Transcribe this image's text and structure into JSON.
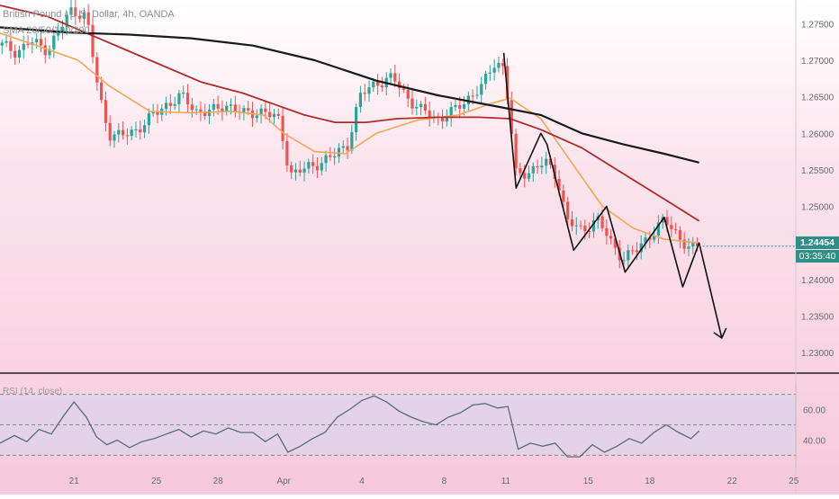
{
  "header": {
    "title": "British Pound / U.S. Dollar, 4h, OANDA",
    "indicator": "SMA 20/50/100/200"
  },
  "price_label": {
    "last": "1.24454",
    "countdown": "03:35:40"
  },
  "rsi": {
    "label": "RSI (14, close)",
    "ticks": [
      60.0,
      40.0
    ],
    "ticks_text": [
      "60.00",
      "40.00"
    ],
    "upper_band": 70,
    "lower_band": 30,
    "mid": 50
  },
  "colors": {
    "up": "#26a69a",
    "down": "#ef5350",
    "sma_fast": "#f5a65b",
    "sma_mid": "#b22b2b",
    "sma_slow": "#1a1a1a",
    "drawing": "#111111",
    "rsi_line": "#5b6b73",
    "rsi_band": "#ddd3ec",
    "price_tag": "#2f8f87",
    "axis_text": "#6b6b6b"
  },
  "chart_data": {
    "type": "line",
    "title": "British Pound / U.S. Dollar, 4h, OANDA",
    "xlabel": "",
    "ylabel": "",
    "x_tick_labels": [
      "21",
      "25",
      "28",
      "Apr",
      "4",
      "8",
      "11",
      "15",
      "18",
      "22",
      "25"
    ],
    "x_tick_positions": [
      0.3,
      4.3,
      7.3,
      10.5,
      14.3,
      18.3,
      21.3,
      25.3,
      28.3,
      32.3,
      35.3
    ],
    "y_ticks": [
      1.275,
      1.27,
      1.265,
      1.26,
      1.255,
      1.25,
      1.245,
      1.24,
      1.235,
      1.23
    ],
    "y_tick_labels": [
      "1.27500",
      "1.27000",
      "1.26500",
      "1.26000",
      "1.25500",
      "1.25000",
      "1.24500",
      "1.24000",
      "1.23500",
      "1.23000"
    ],
    "ylim": [
      1.2278,
      1.2775
    ],
    "xlim": [
      -3.3,
      35.4
    ],
    "grid": false,
    "last_price": 1.24454,
    "price_path": [
      [
        -3.2,
        1.272
      ],
      [
        -2.5,
        1.2712
      ],
      [
        -1.8,
        1.2725
      ],
      [
        -1.0,
        1.2715
      ],
      [
        -0.4,
        1.274
      ],
      [
        0.2,
        1.277
      ],
      [
        0.9,
        1.276
      ],
      [
        1.5,
        1.2655
      ],
      [
        2.0,
        1.26
      ],
      [
        2.6,
        1.2595
      ],
      [
        3.3,
        1.2605
      ],
      [
        4.0,
        1.262
      ],
      [
        4.8,
        1.264
      ],
      [
        5.5,
        1.265
      ],
      [
        6.3,
        1.263
      ],
      [
        7.1,
        1.263
      ],
      [
        7.8,
        1.264
      ],
      [
        8.6,
        1.2625
      ],
      [
        9.5,
        1.2632
      ],
      [
        10.3,
        1.2615
      ],
      [
        10.8,
        1.2545
      ],
      [
        11.5,
        1.255
      ],
      [
        12.2,
        1.256
      ],
      [
        13.0,
        1.257
      ],
      [
        13.6,
        1.2585
      ],
      [
        14.2,
        1.265
      ],
      [
        15.0,
        1.267
      ],
      [
        15.8,
        1.2675
      ],
      [
        16.5,
        1.265
      ],
      [
        17.2,
        1.263
      ],
      [
        18.0,
        1.262
      ],
      [
        18.8,
        1.263
      ],
      [
        19.5,
        1.265
      ],
      [
        20.2,
        1.2665
      ],
      [
        20.8,
        1.27
      ],
      [
        21.2,
        1.269
      ],
      [
        21.5,
        1.262
      ],
      [
        21.8,
        1.254
      ],
      [
        22.5,
        1.255
      ],
      [
        23.2,
        1.256
      ],
      [
        23.8,
        1.254
      ],
      [
        24.3,
        1.248
      ],
      [
        25.0,
        1.2465
      ],
      [
        25.7,
        1.2485
      ],
      [
        26.4,
        1.245
      ],
      [
        27.0,
        1.243
      ],
      [
        27.7,
        1.244
      ],
      [
        28.4,
        1.2465
      ],
      [
        29.0,
        1.248
      ],
      [
        29.7,
        1.246
      ],
      [
        30.3,
        1.244
      ],
      [
        30.7,
        1.2445
      ]
    ],
    "series": [
      {
        "name": "SMA 20",
        "x": [
          -3.3,
          -1.5,
          0.5,
          2.0,
          4.0,
          6.0,
          8.0,
          9.5,
          10.5,
          12.0,
          13.5,
          15.0,
          17.0,
          19.0,
          20.5,
          21.5,
          23.0,
          24.5,
          26.0,
          27.5,
          29.0,
          30.7
        ],
        "values": [
          1.2737,
          1.272,
          1.27,
          1.2665,
          1.263,
          1.2628,
          1.263,
          1.2625,
          1.26,
          1.2575,
          1.2572,
          1.26,
          1.2618,
          1.2625,
          1.264,
          1.2648,
          1.262,
          1.256,
          1.25,
          1.247,
          1.2455,
          1.245
        ]
      },
      {
        "name": "SMA 100",
        "x": [
          -3.3,
          -1.0,
          1.5,
          4.0,
          6.5,
          8.5,
          10.0,
          11.5,
          13.0,
          14.5,
          16.0,
          18.0,
          20.0,
          21.5,
          23.0,
          25.0,
          27.0,
          29.0,
          30.7
        ],
        "values": [
          1.2775,
          1.276,
          1.273,
          1.27,
          1.267,
          1.2655,
          1.264,
          1.2625,
          1.2615,
          1.2615,
          1.262,
          1.2622,
          1.2622,
          1.262,
          1.2605,
          1.258,
          1.2545,
          1.251,
          1.248
        ]
      },
      {
        "name": "SMA 200",
        "x": [
          -3.3,
          0.0,
          3.0,
          6.0,
          9.0,
          12.0,
          15.0,
          18.0,
          21.0,
          23.0,
          25.0,
          27.0,
          29.0,
          30.7
        ],
        "values": [
          1.2745,
          1.2738,
          1.2735,
          1.273,
          1.272,
          1.27,
          1.2672,
          1.2652,
          1.2636,
          1.2625,
          1.26,
          1.2585,
          1.2572,
          1.256
        ]
      }
    ],
    "drawing_zigzag": {
      "x": [
        21.2,
        21.8,
        23.0,
        23.3,
        24.6,
        26.2,
        27.1,
        29.0,
        29.9,
        30.7,
        31.8
      ],
      "values": [
        1.271,
        1.2525,
        1.26,
        1.2585,
        1.244,
        1.25,
        1.241,
        1.2485,
        1.239,
        1.245,
        1.232
      ]
    },
    "rsi_series": {
      "name": "RSI (14, close)",
      "x": [
        -3.3,
        -2.6,
        -2.0,
        -1.4,
        -0.8,
        -0.2,
        0.3,
        0.9,
        1.4,
        1.9,
        2.4,
        3.0,
        3.6,
        4.2,
        4.8,
        5.4,
        6.0,
        6.6,
        7.2,
        7.8,
        8.4,
        9.0,
        9.6,
        10.2,
        10.7,
        11.3,
        11.9,
        12.5,
        13.1,
        13.7,
        14.3,
        14.9,
        15.5,
        16.1,
        16.7,
        17.3,
        17.9,
        18.5,
        19.1,
        19.7,
        20.3,
        20.9,
        21.4,
        21.9,
        22.5,
        23.1,
        23.7,
        24.3,
        24.9,
        25.5,
        26.1,
        26.7,
        27.3,
        27.9,
        28.5,
        29.1,
        29.7,
        30.3,
        30.7
      ],
      "values": [
        38,
        43,
        39,
        47,
        44,
        56,
        65,
        55,
        42,
        37,
        40,
        35,
        39,
        41,
        44,
        47,
        42,
        46,
        44,
        48,
        45,
        45,
        39,
        44,
        32,
        36,
        41,
        45,
        55,
        60,
        66,
        69,
        65,
        59,
        55,
        52,
        50,
        55,
        58,
        63,
        64,
        61,
        62,
        34,
        38,
        36,
        38,
        29,
        29,
        37,
        32,
        36,
        41,
        38,
        45,
        50,
        45,
        41,
        46
      ]
    }
  }
}
